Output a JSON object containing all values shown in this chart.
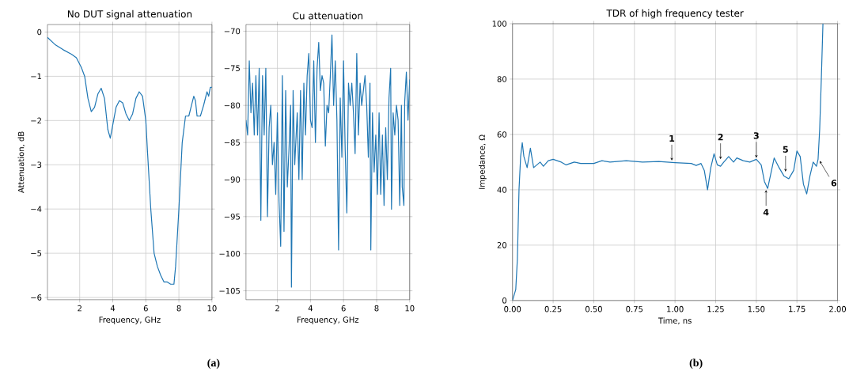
{
  "chart_data": [
    {
      "type": "line",
      "title": "No DUT signal attenuation",
      "xlabel": "Frequency, GHz",
      "ylabel": "Attenuation, dB",
      "color": "#1f77b4",
      "grid": true,
      "xlim": [
        0.05,
        10
      ],
      "ylim": [
        -6.05,
        0.17
      ],
      "xticks": [
        2,
        4,
        6,
        8,
        10
      ],
      "yticks": [
        {
          "value": -6,
          "label": "−6"
        },
        {
          "value": -5,
          "label": "−5"
        },
        {
          "value": -4,
          "label": "−4"
        },
        {
          "value": -3,
          "label": "−3"
        },
        {
          "value": -2,
          "label": "−2"
        },
        {
          "value": -1,
          "label": "−1"
        },
        0
      ],
      "x": [
        0.05,
        0.5,
        1,
        1.5,
        1.8,
        2.1,
        2.3,
        2.5,
        2.7,
        2.9,
        3.1,
        3.3,
        3.5,
        3.7,
        3.85,
        4.0,
        4.2,
        4.4,
        4.6,
        4.8,
        5.0,
        5.2,
        5.4,
        5.6,
        5.8,
        6.0,
        6.1,
        6.3,
        6.5,
        6.7,
        6.9,
        7.1,
        7.3,
        7.5,
        7.7,
        7.8,
        8.0,
        8.2,
        8.4,
        8.6,
        8.8,
        8.9,
        9.0,
        9.1,
        9.3,
        9.5,
        9.7,
        9.8,
        9.9,
        10
      ],
      "values": [
        -0.12,
        -0.28,
        -0.4,
        -0.5,
        -0.58,
        -0.8,
        -1.0,
        -1.5,
        -1.8,
        -1.7,
        -1.4,
        -1.27,
        -1.5,
        -2.2,
        -2.4,
        -2.1,
        -1.7,
        -1.55,
        -1.6,
        -1.85,
        -2.0,
        -1.85,
        -1.5,
        -1.35,
        -1.45,
        -2.0,
        -2.7,
        -4.0,
        -5.0,
        -5.3,
        -5.5,
        -5.65,
        -5.65,
        -5.7,
        -5.7,
        -5.3,
        -4.0,
        -2.5,
        -1.9,
        -1.9,
        -1.6,
        -1.45,
        -1.55,
        -1.9,
        -1.9,
        -1.65,
        -1.35,
        -1.45,
        -1.25,
        -1.25
      ],
      "annotations": [
        "(a)"
      ]
    },
    {
      "type": "line",
      "title": "Cu attenuation",
      "xlabel": "Frequency, GHz",
      "color": "#1f77b4",
      "grid": true,
      "xlim": [
        0.1,
        10
      ],
      "ylim": [
        -106.2,
        -69.1
      ],
      "xticks": [
        2,
        4,
        6,
        8,
        10
      ],
      "yticks": [
        {
          "value": -105,
          "label": "−105"
        },
        {
          "value": -100,
          "label": "−100"
        },
        {
          "value": -95,
          "label": "−95"
        },
        {
          "value": -90,
          "label": "−90"
        },
        {
          "value": -85,
          "label": "−85"
        },
        {
          "value": -80,
          "label": "−80"
        },
        {
          "value": -75,
          "label": "−75"
        },
        {
          "value": -70,
          "label": "−70"
        }
      ],
      "x": [
        0.1,
        0.2,
        0.3,
        0.4,
        0.5,
        0.6,
        0.7,
        0.8,
        0.9,
        1.0,
        1.1,
        1.2,
        1.3,
        1.4,
        1.5,
        1.6,
        1.7,
        1.8,
        1.9,
        2.0,
        2.1,
        2.2,
        2.3,
        2.4,
        2.5,
        2.6,
        2.7,
        2.8,
        2.85,
        2.95,
        3.05,
        3.2,
        3.3,
        3.4,
        3.5,
        3.6,
        3.7,
        3.8,
        3.9,
        4.0,
        4.1,
        4.2,
        4.3,
        4.4,
        4.5,
        4.6,
        4.7,
        4.8,
        4.9,
        5.0,
        5.1,
        5.2,
        5.3,
        5.4,
        5.5,
        5.6,
        5.7,
        5.8,
        5.9,
        6.0,
        6.1,
        6.2,
        6.3,
        6.4,
        6.5,
        6.6,
        6.7,
        6.8,
        6.9,
        7.0,
        7.1,
        7.2,
        7.3,
        7.4,
        7.5,
        7.6,
        7.65,
        7.75,
        7.85,
        7.95,
        8.05,
        8.15,
        8.25,
        8.35,
        8.45,
        8.55,
        8.65,
        8.75,
        8.85,
        8.9,
        9.0,
        9.1,
        9.2,
        9.3,
        9.4,
        9.5,
        9.55,
        9.65,
        9.7,
        9.8,
        9.9,
        10.0
      ],
      "values": [
        -82,
        -84,
        -74,
        -81,
        -77,
        -84,
        -76,
        -84,
        -75,
        -95.5,
        -76,
        -84,
        -75,
        -95,
        -83,
        -80,
        -88,
        -85,
        -92,
        -81,
        -93,
        -99,
        -76,
        -97,
        -78,
        -91,
        -86,
        -80,
        -104.5,
        -78,
        -88,
        -81,
        -90,
        -78,
        -90,
        -77,
        -84,
        -76,
        -73,
        -82,
        -83,
        -74,
        -85,
        -75,
        -71.5,
        -78,
        -76,
        -77,
        -85.5,
        -80,
        -81,
        -76,
        -70.5,
        -80,
        -74,
        -82,
        -99.5,
        -79,
        -87,
        -74,
        -86,
        -94.5,
        -77,
        -80,
        -77,
        -81,
        -86.5,
        -73,
        -84,
        -77,
        -80,
        -78,
        -76,
        -80,
        -87,
        -77,
        -99.5,
        -81,
        -89,
        -84,
        -92,
        -81,
        -92,
        -84,
        -93.5,
        -83,
        -90,
        -79,
        -75,
        -94,
        -81,
        -84,
        -80,
        -82,
        -93.5,
        -80,
        -91,
        -93.5,
        -79.5,
        -75.5,
        -82,
        -76.5
      ]
    },
    {
      "type": "line",
      "title": "TDR of high frequency tester",
      "xlabel": "Time, ns",
      "ylabel": "Impedance, Ω",
      "color": "#1f77b4",
      "grid": true,
      "xlim": [
        0,
        2
      ],
      "ylim": [
        0,
        100
      ],
      "xticks": [
        {
          "value": 0,
          "label": "0.00"
        },
        {
          "value": 0.25,
          "label": "0.25"
        },
        {
          "value": 0.5,
          "label": "0.50"
        },
        {
          "value": 0.75,
          "label": "0.75"
        },
        {
          "value": 1,
          "label": "1.00"
        },
        {
          "value": 1.25,
          "label": "1.25"
        },
        {
          "value": 1.5,
          "label": "1.50"
        },
        {
          "value": 1.75,
          "label": "1.75"
        },
        {
          "value": 2,
          "label": "2.00"
        }
      ],
      "yticks": [
        0,
        20,
        40,
        60,
        80,
        100
      ],
      "x": [
        0,
        0.02,
        0.03,
        0.04,
        0.05,
        0.06,
        0.07,
        0.09,
        0.11,
        0.13,
        0.15,
        0.17,
        0.19,
        0.22,
        0.25,
        0.3,
        0.33,
        0.38,
        0.42,
        0.5,
        0.55,
        0.6,
        0.7,
        0.8,
        0.9,
        1.0,
        1.1,
        1.13,
        1.16,
        1.18,
        1.2,
        1.22,
        1.24,
        1.26,
        1.28,
        1.3,
        1.33,
        1.36,
        1.38,
        1.42,
        1.46,
        1.5,
        1.53,
        1.55,
        1.57,
        1.59,
        1.61,
        1.64,
        1.67,
        1.7,
        1.73,
        1.75,
        1.77,
        1.79,
        1.81,
        1.83,
        1.85,
        1.87,
        1.88,
        1.89,
        1.9,
        1.91
      ],
      "values": [
        0,
        4,
        15,
        40,
        52,
        57,
        52,
        48,
        55,
        48,
        49,
        50,
        48.5,
        50.5,
        51,
        50,
        49,
        50,
        49.5,
        49.5,
        50.5,
        50,
        50.5,
        50,
        50.2,
        49.8,
        49.5,
        48.8,
        49.5,
        47,
        40,
        48,
        53,
        49,
        48.5,
        50,
        52,
        50,
        51.5,
        50.5,
        50,
        51,
        49,
        43,
        40.5,
        46,
        51.5,
        48,
        45,
        44,
        47,
        54,
        52,
        42,
        38.5,
        45,
        50,
        48.5,
        51,
        62,
        80,
        100
      ],
      "annotations": [
        {
          "text": "1",
          "x": 0.98,
          "y": 50
        },
        {
          "text": "2",
          "x": 1.28,
          "y": 50.5
        },
        {
          "text": "3",
          "x": 1.5,
          "y": 51
        },
        {
          "text": "4",
          "x": 1.56,
          "y": 40.5
        },
        {
          "text": "5",
          "x": 1.68,
          "y": 46
        },
        {
          "text": "6",
          "x": 1.88,
          "y": 51
        },
        "(b)"
      ]
    }
  ]
}
